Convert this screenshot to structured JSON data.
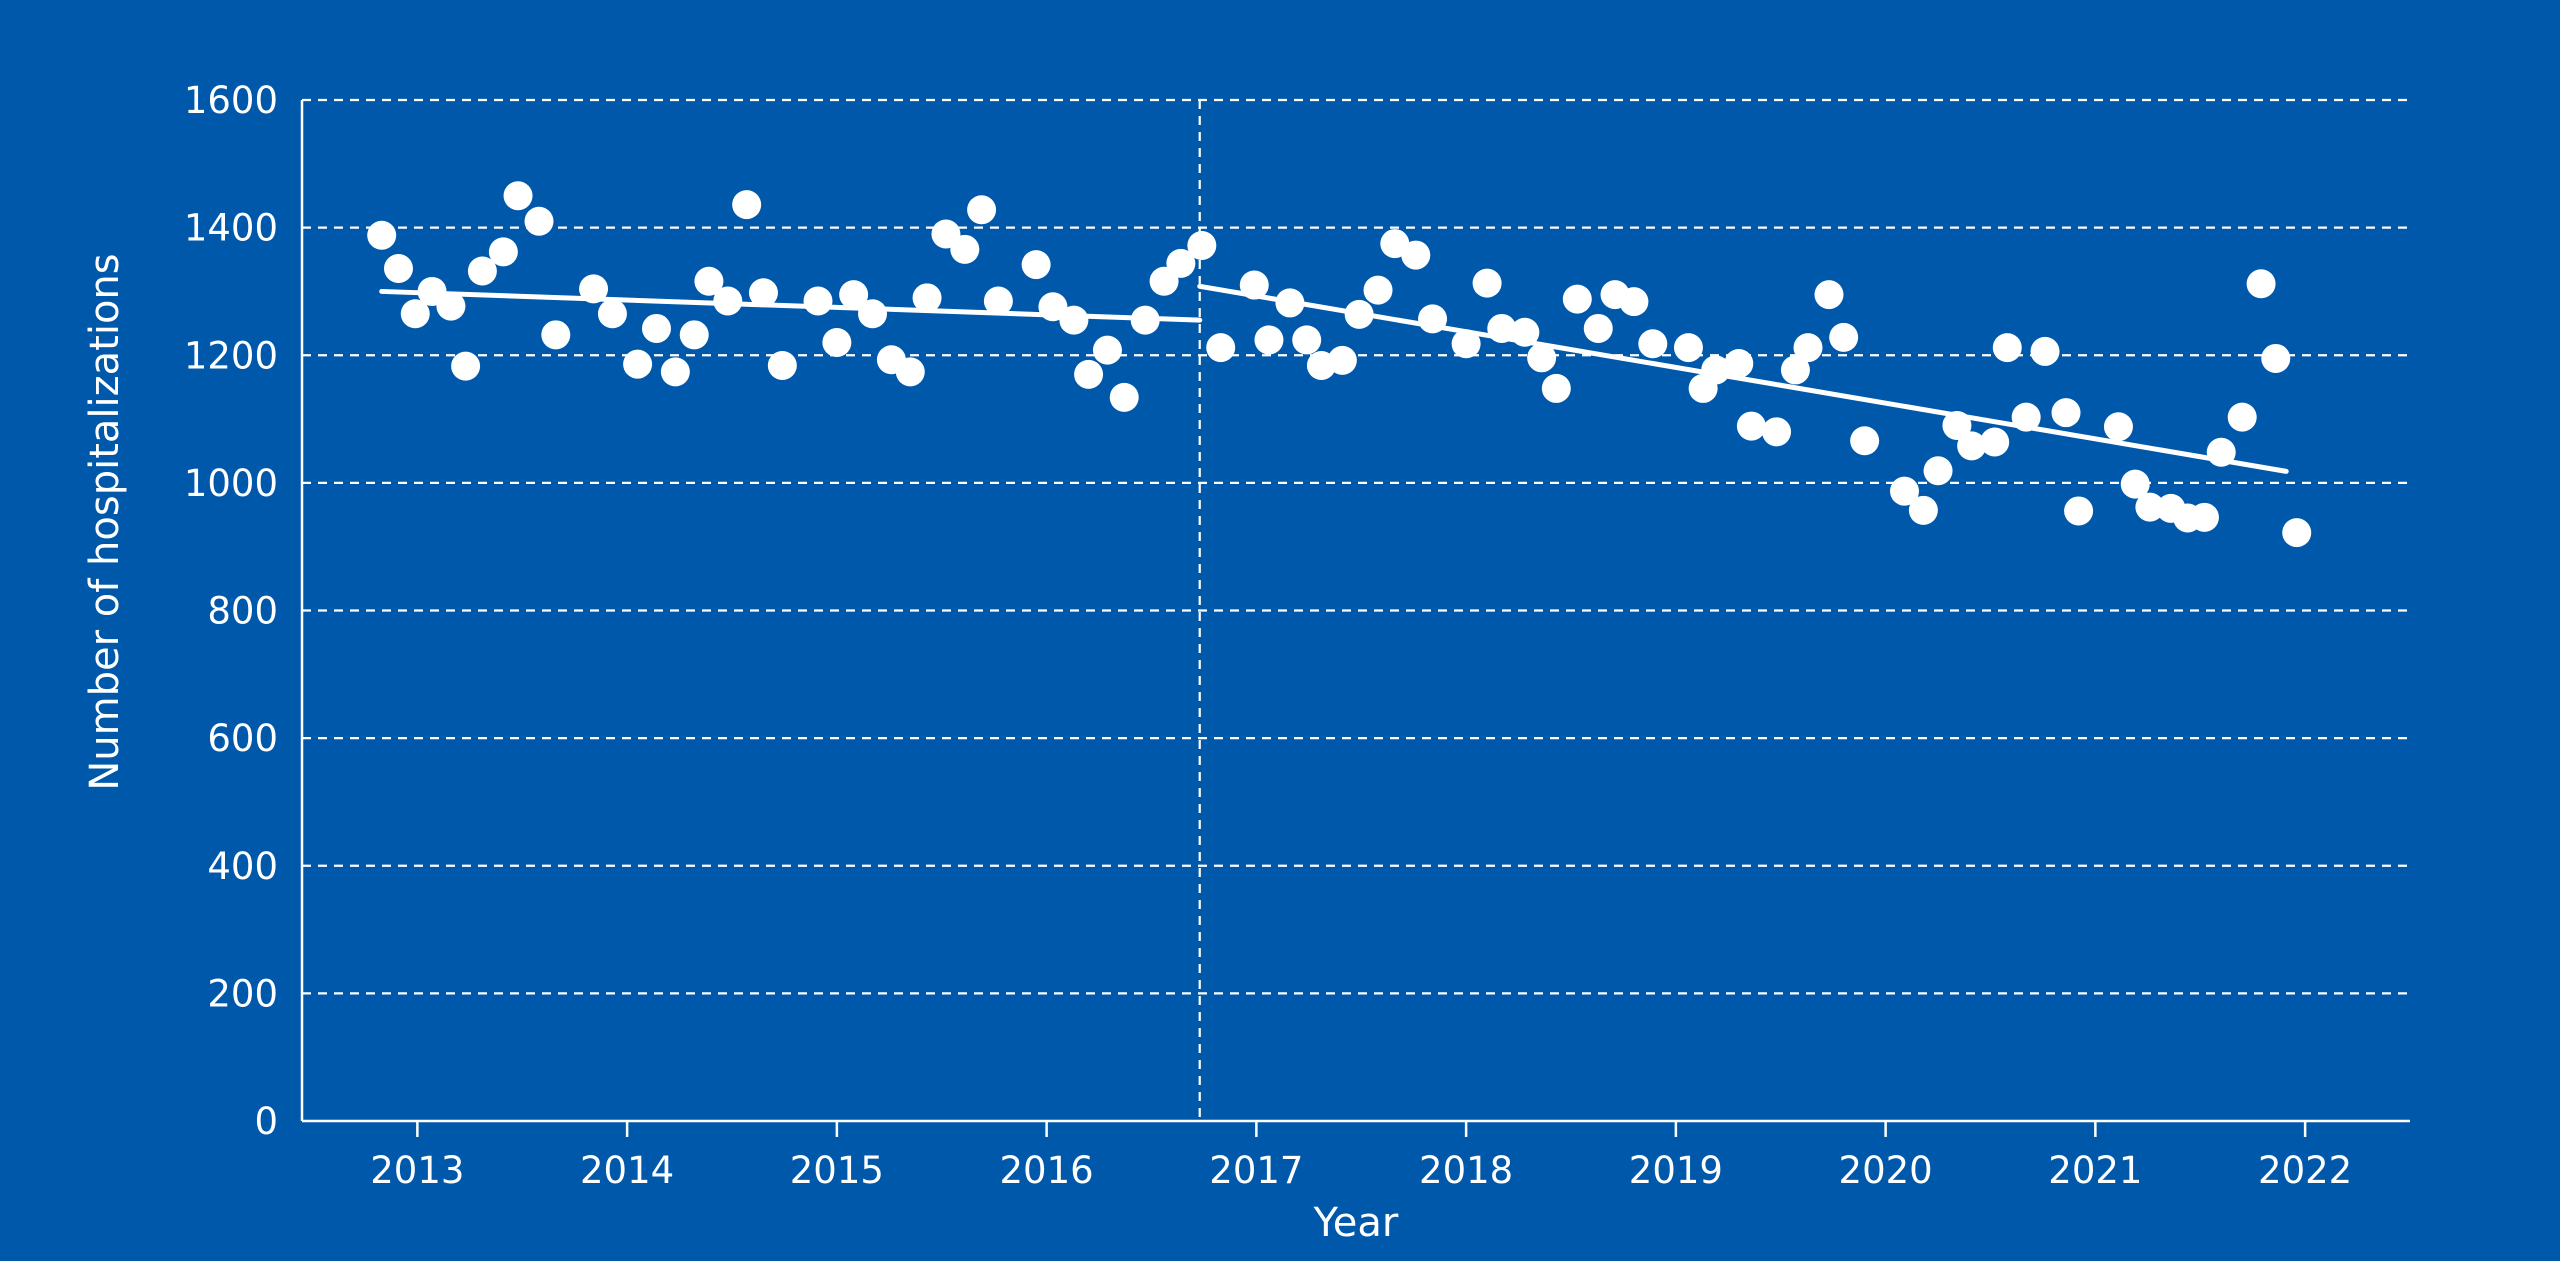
{
  "colors": {
    "background": "#0058AB",
    "foreground": "#FFFFFF"
  },
  "chart_data": {
    "type": "scatter",
    "title": "",
    "xlabel": "Year",
    "ylabel": "Number of hospitalizations",
    "xlim": [
      2012.45,
      2022.5
    ],
    "ylim": [
      0,
      1600
    ],
    "x_ticks": [
      2013,
      2014,
      2015,
      2016,
      2017,
      2018,
      2019,
      2020,
      2021,
      2022
    ],
    "x_tick_labels": [
      "2013",
      "2014",
      "2015",
      "2016",
      "2017",
      "2018",
      "2019",
      "2020",
      "2021",
      "2022"
    ],
    "y_ticks": [
      0,
      200,
      400,
      600,
      800,
      1000,
      1200,
      1400,
      1600
    ],
    "y_tick_labels": [
      "0",
      "200",
      "400",
      "600",
      "800",
      "1000",
      "1200",
      "1400",
      "1600"
    ],
    "grid": {
      "horizontal": true,
      "style": "dashed"
    },
    "breakpoint": {
      "x": 2016.73,
      "style": "dashed vertical line"
    },
    "trend_lines": [
      {
        "x": [
          2012.83,
          2016.73
        ],
        "y": [
          1300,
          1255
        ]
      },
      {
        "x": [
          2016.73,
          2021.91
        ],
        "y": [
          1308,
          1018
        ]
      }
    ],
    "points": [
      [
        2012.83,
        1388
      ],
      [
        2012.91,
        1336
      ],
      [
        2012.99,
        1265
      ],
      [
        2013.07,
        1300
      ],
      [
        2013.16,
        1277
      ],
      [
        2013.23,
        1183
      ],
      [
        2013.31,
        1332
      ],
      [
        2013.41,
        1362
      ],
      [
        2013.48,
        1450
      ],
      [
        2013.58,
        1410
      ],
      [
        2013.66,
        1232
      ],
      [
        2013.84,
        1304
      ],
      [
        2013.93,
        1265
      ],
      [
        2014.05,
        1186
      ],
      [
        2014.14,
        1242
      ],
      [
        2014.23,
        1174
      ],
      [
        2014.32,
        1232
      ],
      [
        2014.39,
        1316
      ],
      [
        2014.48,
        1285
      ],
      [
        2014.57,
        1436
      ],
      [
        2014.65,
        1298
      ],
      [
        2014.74,
        1184
      ],
      [
        2014.91,
        1285
      ],
      [
        2015.0,
        1220
      ],
      [
        2015.08,
        1295
      ],
      [
        2015.17,
        1265
      ],
      [
        2015.26,
        1193
      ],
      [
        2015.35,
        1174
      ],
      [
        2015.43,
        1290
      ],
      [
        2015.52,
        1390
      ],
      [
        2015.61,
        1366
      ],
      [
        2015.69,
        1428
      ],
      [
        2015.77,
        1285
      ],
      [
        2015.95,
        1342
      ],
      [
        2016.03,
        1276
      ],
      [
        2016.13,
        1255
      ],
      [
        2016.2,
        1170
      ],
      [
        2016.29,
        1208
      ],
      [
        2016.37,
        1134
      ],
      [
        2016.47,
        1255
      ],
      [
        2016.56,
        1316
      ],
      [
        2016.64,
        1344
      ],
      [
        2016.74,
        1372
      ],
      [
        2016.83,
        1212
      ],
      [
        2016.99,
        1310
      ],
      [
        2017.06,
        1224
      ],
      [
        2017.16,
        1282
      ],
      [
        2017.24,
        1224
      ],
      [
        2017.31,
        1184
      ],
      [
        2017.41,
        1192
      ],
      [
        2017.49,
        1264
      ],
      [
        2017.58,
        1302
      ],
      [
        2017.66,
        1375
      ],
      [
        2017.76,
        1357
      ],
      [
        2017.84,
        1257
      ],
      [
        2018.0,
        1218
      ],
      [
        2018.1,
        1313
      ],
      [
        2018.17,
        1242
      ],
      [
        2018.28,
        1236
      ],
      [
        2018.36,
        1196
      ],
      [
        2018.43,
        1148
      ],
      [
        2018.53,
        1288
      ],
      [
        2018.63,
        1242
      ],
      [
        2018.71,
        1295
      ],
      [
        2018.8,
        1284
      ],
      [
        2018.89,
        1218
      ],
      [
        2019.06,
        1212
      ],
      [
        2019.13,
        1148
      ],
      [
        2019.19,
        1177
      ],
      [
        2019.3,
        1187
      ],
      [
        2019.36,
        1089
      ],
      [
        2019.48,
        1080
      ],
      [
        2019.57,
        1177
      ],
      [
        2019.63,
        1212
      ],
      [
        2019.73,
        1295
      ],
      [
        2019.8,
        1228
      ],
      [
        2019.9,
        1066
      ],
      [
        2020.09,
        987
      ],
      [
        2020.18,
        957
      ],
      [
        2020.25,
        1019
      ],
      [
        2020.34,
        1090
      ],
      [
        2020.41,
        1058
      ],
      [
        2020.52,
        1064
      ],
      [
        2020.58,
        1212
      ],
      [
        2020.67,
        1103
      ],
      [
        2020.76,
        1206
      ],
      [
        2020.86,
        1110
      ],
      [
        2020.92,
        956
      ],
      [
        2021.11,
        1088
      ],
      [
        2021.19,
        998
      ],
      [
        2021.26,
        962
      ],
      [
        2021.36,
        960
      ],
      [
        2021.44,
        945
      ],
      [
        2021.52,
        946
      ],
      [
        2021.6,
        1048
      ],
      [
        2021.7,
        1103
      ],
      [
        2021.79,
        1312
      ],
      [
        2021.86,
        1195
      ],
      [
        2021.96,
        922
      ]
    ]
  }
}
